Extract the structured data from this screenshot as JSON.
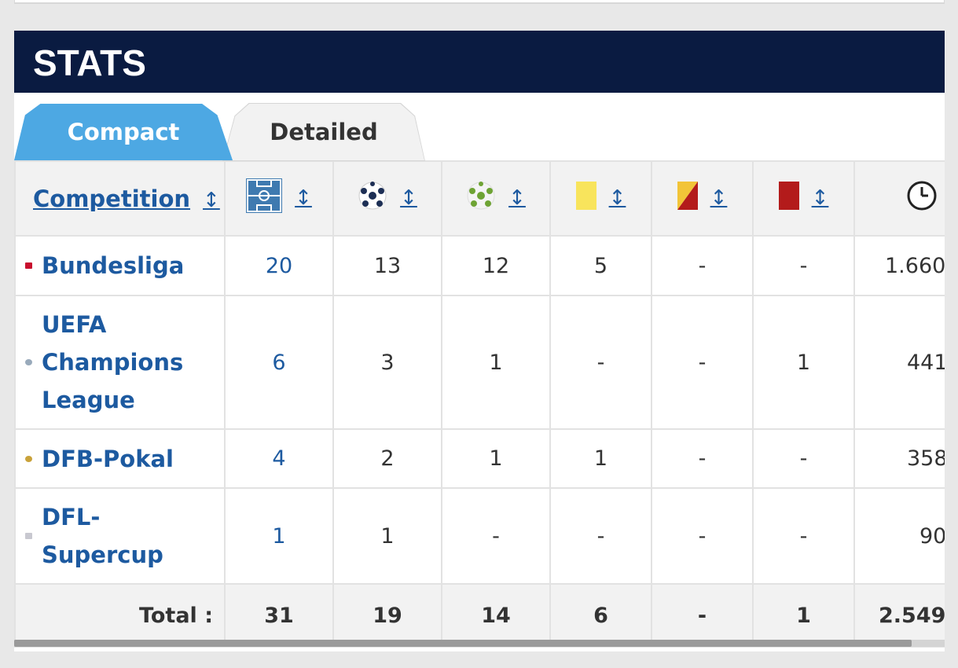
{
  "section_title": "STATS",
  "tabs": {
    "compact": "Compact",
    "detailed": "Detailed"
  },
  "columns": {
    "competition": "Competition",
    "sort_glyph": "↕",
    "icons": [
      "appearances-pitch-icon",
      "goals-ball-icon",
      "assists-ball-icon",
      "yellow-card-icon",
      "second-yellow-card-icon",
      "red-card-icon",
      "minutes-clock-icon"
    ]
  },
  "rows": [
    {
      "competition": "Bundesliga",
      "apps": "20",
      "goals": "13",
      "assists": "12",
      "yellow": "5",
      "second_yellow": "-",
      "red": "-",
      "minutes": "1.660"
    },
    {
      "competition": "UEFA Champions League",
      "apps": "6",
      "goals": "3",
      "assists": "1",
      "yellow": "-",
      "second_yellow": "-",
      "red": "1",
      "minutes": "441"
    },
    {
      "competition": "DFB-Pokal",
      "apps": "4",
      "goals": "2",
      "assists": "1",
      "yellow": "1",
      "second_yellow": "-",
      "red": "-",
      "minutes": "358"
    },
    {
      "competition": "DFL-Supercup",
      "apps": "1",
      "goals": "1",
      "assists": "-",
      "yellow": "-",
      "second_yellow": "-",
      "red": "-",
      "minutes": "90"
    }
  ],
  "total": {
    "label": "Total :",
    "apps": "31",
    "goals": "19",
    "assists": "14",
    "yellow": "6",
    "second_yellow": "-",
    "red": "1",
    "minutes": "2.549"
  },
  "colors": {
    "header_bg": "#0a1b41",
    "tab_active": "#4da8e3",
    "link": "#1d5aa0",
    "yellow_card": "#f8e45c",
    "red_card": "#b31b1b"
  }
}
